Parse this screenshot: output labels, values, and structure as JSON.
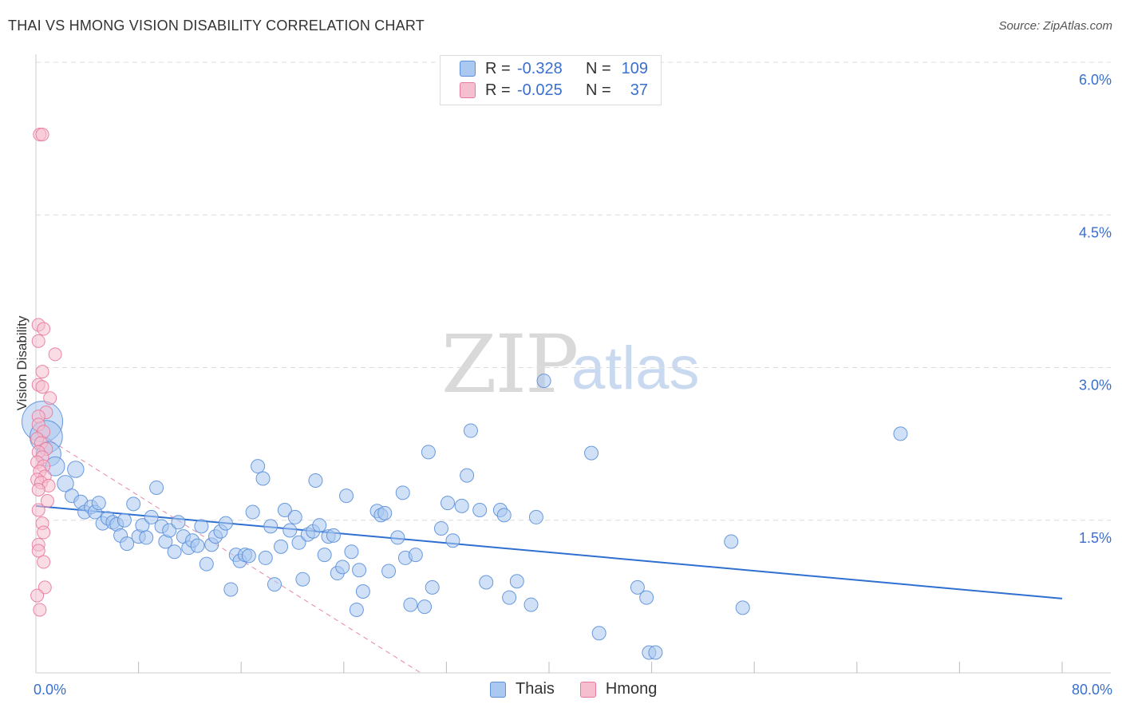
{
  "header": {
    "title": "THAI VS HMONG VISION DISABILITY CORRELATION CHART",
    "source": "Source: ZipAtlas.com"
  },
  "watermark": {
    "zip": "ZIP",
    "atlas": "atlas"
  },
  "colors": {
    "thai": "#5b8fd9",
    "thai_fill": "#aac8f0",
    "thai_line": "#2e6fd0",
    "hmong": "#e8799c",
    "hmong_fill": "#f6bfd0",
    "hmong_line": "#e26a90",
    "axis_text": "#3a6fce",
    "grid": "#dcdcdc"
  },
  "legend": {
    "rows": [
      {
        "series": "Thais",
        "r_label": "R =",
        "r_value": "-0.328",
        "n_label": "N =",
        "n_value": "109"
      },
      {
        "series": "Hmong",
        "r_label": "R =",
        "r_value": "-0.025",
        "n_label": "N =",
        "n_value": "37"
      }
    ]
  },
  "bottom_legend": {
    "thai": "Thais",
    "hmong": "Hmong"
  },
  "chart_data": {
    "type": "scatter",
    "title": "THAI VS HMONG VISION DISABILITY CORRELATION CHART",
    "xlabel": "",
    "ylabel": "Vision Disability",
    "xlim": [
      0,
      80
    ],
    "ylim": [
      0,
      6.2
    ],
    "x_tick_labels": [
      "0.0%",
      "80.0%"
    ],
    "y_ticks": [
      1.5,
      3.0,
      4.5,
      6.0
    ],
    "y_tick_labels": [
      "1.5%",
      "3.0%",
      "4.5%",
      "6.0%"
    ],
    "grid": true,
    "series": [
      {
        "name": "Thais",
        "r": -0.328,
        "n": 109,
        "trend": {
          "x": [
            0,
            80
          ],
          "y": [
            1.64,
            0.73
          ]
        },
        "points": [
          [
            0.5,
            2.47,
            3
          ],
          [
            0.8,
            2.32,
            2.4
          ],
          [
            1.0,
            2.15,
            1.8
          ],
          [
            1.5,
            2.03,
            1.4
          ],
          [
            2.3,
            1.86,
            1.2
          ],
          [
            3.1,
            2.0,
            1.2
          ],
          [
            2.8,
            1.74,
            1
          ],
          [
            3.5,
            1.68,
            1
          ],
          [
            3.8,
            1.58,
            1
          ],
          [
            4.3,
            1.63,
            1
          ],
          [
            4.6,
            1.58,
            1
          ],
          [
            4.9,
            1.67,
            1
          ],
          [
            5.2,
            1.47,
            1
          ],
          [
            5.6,
            1.52,
            1
          ],
          [
            6.0,
            1.48,
            1
          ],
          [
            6.3,
            1.46,
            1
          ],
          [
            6.6,
            1.35,
            1
          ],
          [
            6.9,
            1.5,
            1
          ],
          [
            7.1,
            1.27,
            1
          ],
          [
            7.6,
            1.66,
            1
          ],
          [
            8.0,
            1.34,
            1
          ],
          [
            8.3,
            1.45,
            1
          ],
          [
            8.6,
            1.33,
            1
          ],
          [
            9.0,
            1.53,
            1
          ],
          [
            9.4,
            1.82,
            1
          ],
          [
            9.8,
            1.44,
            1
          ],
          [
            10.1,
            1.29,
            1
          ],
          [
            10.4,
            1.4,
            1
          ],
          [
            10.8,
            1.19,
            1
          ],
          [
            11.1,
            1.48,
            1
          ],
          [
            11.5,
            1.34,
            1
          ],
          [
            11.9,
            1.23,
            1
          ],
          [
            12.2,
            1.3,
            1
          ],
          [
            12.6,
            1.25,
            1
          ],
          [
            12.9,
            1.44,
            1
          ],
          [
            13.3,
            1.07,
            1
          ],
          [
            13.7,
            1.26,
            1
          ],
          [
            14.0,
            1.34,
            1
          ],
          [
            14.4,
            1.39,
            1
          ],
          [
            14.8,
            1.47,
            1
          ],
          [
            15.2,
            0.82,
            1
          ],
          [
            15.6,
            1.16,
            1
          ],
          [
            15.9,
            1.1,
            1
          ],
          [
            16.3,
            1.16,
            1
          ],
          [
            16.6,
            1.15,
            1
          ],
          [
            16.9,
            1.58,
            1
          ],
          [
            17.3,
            2.03,
            1
          ],
          [
            17.7,
            1.91,
            1
          ],
          [
            17.9,
            1.13,
            1
          ],
          [
            18.3,
            1.44,
            1
          ],
          [
            18.6,
            0.87,
            1
          ],
          [
            19.1,
            1.24,
            1
          ],
          [
            19.4,
            1.6,
            1
          ],
          [
            19.8,
            1.4,
            1
          ],
          [
            20.2,
            1.53,
            1
          ],
          [
            20.5,
            1.28,
            1
          ],
          [
            20.8,
            0.92,
            1
          ],
          [
            21.2,
            1.36,
            1
          ],
          [
            21.6,
            1.39,
            1
          ],
          [
            21.8,
            1.89,
            1
          ],
          [
            22.1,
            1.45,
            1
          ],
          [
            22.5,
            1.16,
            1
          ],
          [
            22.8,
            1.34,
            1
          ],
          [
            23.2,
            1.35,
            1
          ],
          [
            23.5,
            0.98,
            1
          ],
          [
            23.9,
            1.04,
            1
          ],
          [
            24.2,
            1.74,
            1
          ],
          [
            24.6,
            1.19,
            1
          ],
          [
            25.0,
            0.62,
            1
          ],
          [
            25.2,
            1.01,
            1
          ],
          [
            25.5,
            0.8,
            1
          ],
          [
            26.6,
            1.59,
            1
          ],
          [
            26.9,
            1.55,
            1
          ],
          [
            27.2,
            1.57,
            1
          ],
          [
            27.5,
            1.0,
            1
          ],
          [
            28.2,
            1.33,
            1
          ],
          [
            28.6,
            1.77,
            1
          ],
          [
            28.8,
            1.13,
            1
          ],
          [
            29.2,
            0.67,
            1
          ],
          [
            29.6,
            1.16,
            1
          ],
          [
            30.3,
            0.65,
            1
          ],
          [
            30.6,
            2.17,
            1
          ],
          [
            30.9,
            0.84,
            1
          ],
          [
            31.6,
            1.42,
            1
          ],
          [
            32.1,
            1.67,
            1
          ],
          [
            32.5,
            1.3,
            1
          ],
          [
            33.2,
            1.64,
            1
          ],
          [
            33.6,
            1.94,
            1
          ],
          [
            33.9,
            2.38,
            1
          ],
          [
            34.6,
            1.6,
            1
          ],
          [
            35.1,
            0.89,
            1
          ],
          [
            36.2,
            1.6,
            1
          ],
          [
            36.5,
            1.55,
            1
          ],
          [
            36.9,
            0.74,
            1
          ],
          [
            37.5,
            0.9,
            1
          ],
          [
            38.6,
            0.67,
            1
          ],
          [
            39.0,
            1.53,
            1
          ],
          [
            39.6,
            2.87,
            1
          ],
          [
            43.3,
            2.16,
            1
          ],
          [
            43.9,
            0.39,
            1
          ],
          [
            46.9,
            0.84,
            1
          ],
          [
            47.6,
            0.74,
            1
          ],
          [
            47.8,
            0.2,
            1
          ],
          [
            48.3,
            0.2,
            1
          ],
          [
            54.2,
            1.29,
            1
          ],
          [
            55.1,
            0.64,
            1
          ],
          [
            67.4,
            2.35,
            1
          ]
        ]
      },
      {
        "name": "Hmong",
        "r": -0.025,
        "n": 37,
        "trend": {
          "x": [
            0,
            1.2
          ],
          "y": [
            2.38,
            2.28
          ]
        },
        "trend_extension": {
          "x": [
            1.2,
            30
          ],
          "y": [
            2.28,
            0.0
          ]
        },
        "points": [
          [
            0.3,
            5.29
          ],
          [
            0.5,
            5.29
          ],
          [
            0.2,
            3.42
          ],
          [
            0.6,
            3.38
          ],
          [
            0.2,
            3.26
          ],
          [
            1.5,
            3.13
          ],
          [
            0.5,
            2.96
          ],
          [
            0.2,
            2.83
          ],
          [
            0.5,
            2.81
          ],
          [
            1.1,
            2.7
          ],
          [
            0.8,
            2.56
          ],
          [
            0.2,
            2.52
          ],
          [
            0.2,
            2.44
          ],
          [
            0.6,
            2.37
          ],
          [
            0.1,
            2.3
          ],
          [
            0.4,
            2.26
          ],
          [
            0.8,
            2.2
          ],
          [
            0.2,
            2.17
          ],
          [
            0.5,
            2.12
          ],
          [
            0.1,
            2.07
          ],
          [
            0.6,
            2.03
          ],
          [
            0.3,
            1.98
          ],
          [
            0.7,
            1.93
          ],
          [
            0.1,
            1.9
          ],
          [
            0.4,
            1.87
          ],
          [
            1.0,
            1.84
          ],
          [
            0.2,
            1.8
          ],
          [
            0.9,
            1.69
          ],
          [
            0.2,
            1.6
          ],
          [
            0.5,
            1.47
          ],
          [
            0.6,
            1.38
          ],
          [
            0.2,
            1.26
          ],
          [
            0.2,
            1.2
          ],
          [
            0.6,
            1.09
          ],
          [
            0.7,
            0.84
          ],
          [
            0.1,
            0.76
          ],
          [
            0.3,
            0.62
          ]
        ]
      }
    ]
  }
}
